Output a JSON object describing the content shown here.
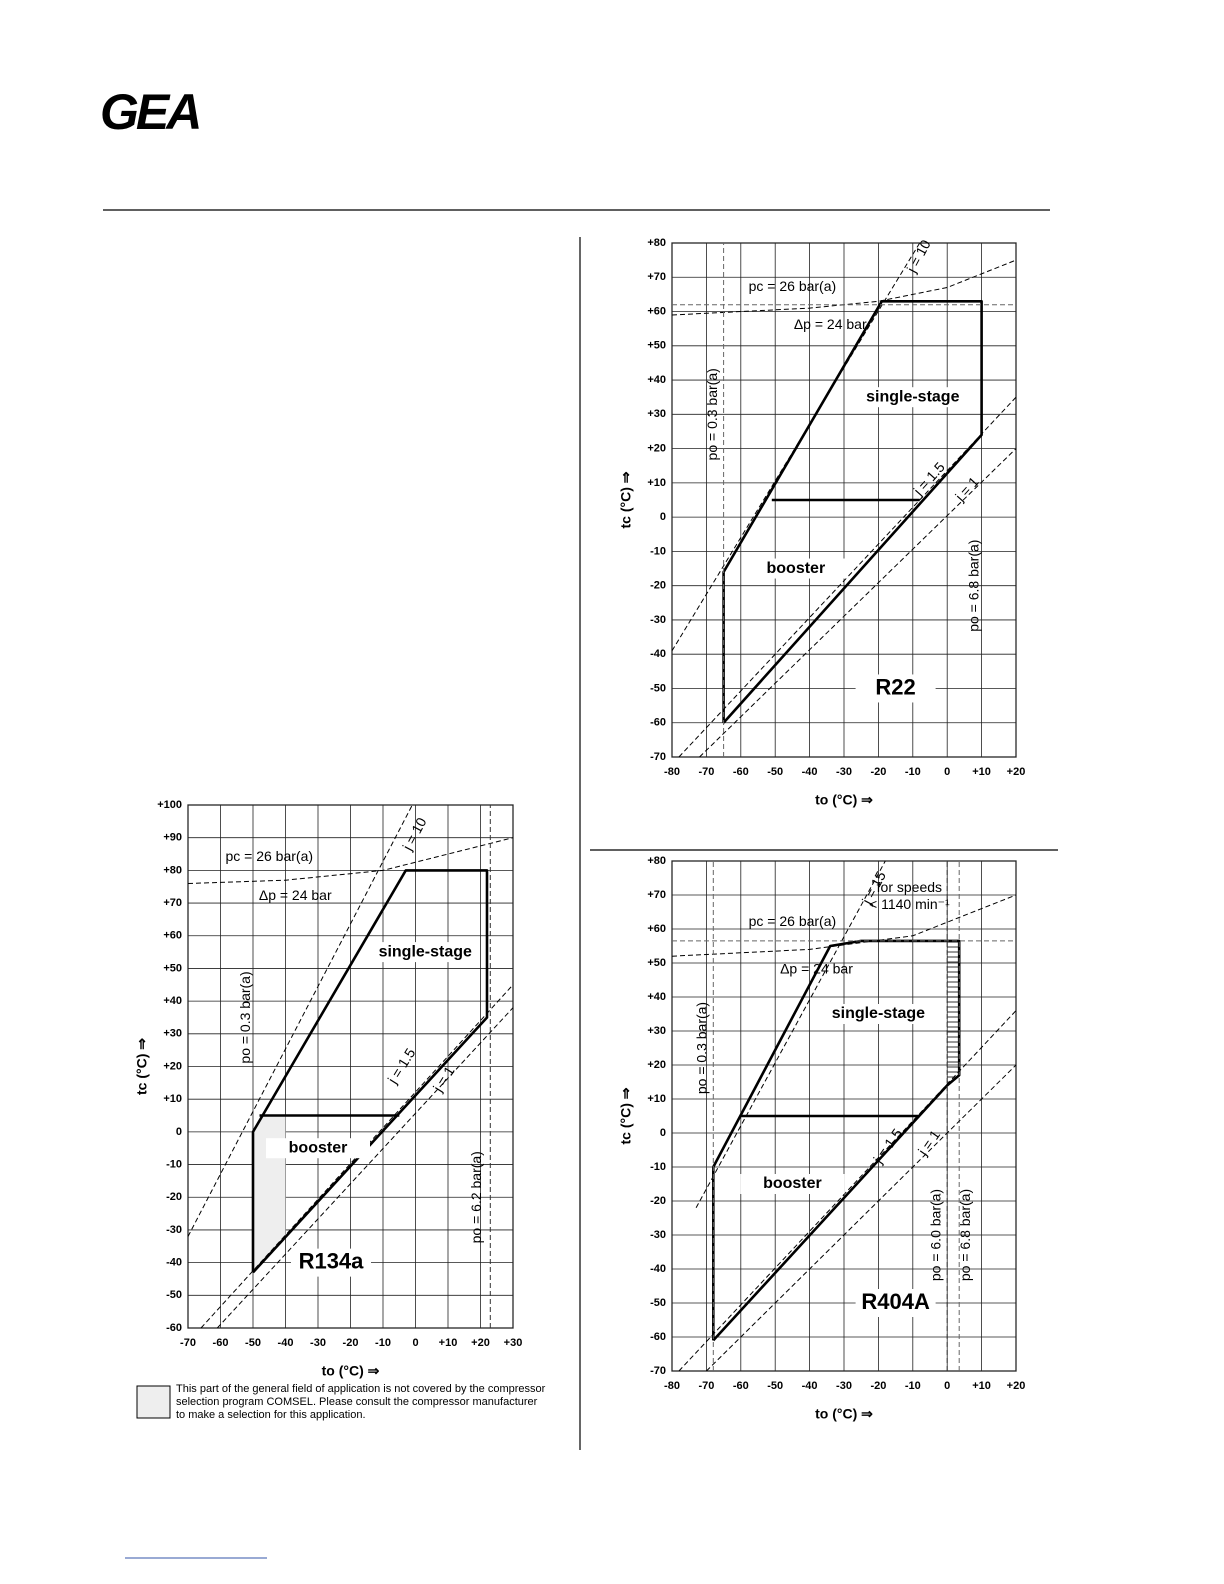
{
  "header": {
    "logo": "GEA"
  },
  "note": "This part of the general field of application is not covered by the compressor selection program COMSEL. Please consult the compressor manufacturer to make a selection for this application.",
  "chart_data": [
    {
      "type": "line",
      "title": "R22",
      "xlabel": "to (°C) ⇒",
      "ylabel": "tc (°C) ⇒",
      "xlim": [
        -80,
        20
      ],
      "ylim": [
        -70,
        80
      ],
      "grid": true,
      "xticks": [
        -80,
        -70,
        -60,
        -50,
        -40,
        -30,
        -20,
        -10,
        0,
        {
          "value": 10,
          "label": "+10"
        },
        {
          "value": 20,
          "label": "+20"
        }
      ],
      "yticks": [
        -70,
        -60,
        -50,
        -40,
        -30,
        -20,
        -10,
        0,
        {
          "value": 10,
          "label": "+10"
        },
        {
          "value": 20,
          "label": "+20"
        },
        {
          "value": 30,
          "label": "+30"
        },
        {
          "value": 40,
          "label": "+40"
        },
        {
          "value": 50,
          "label": "+50"
        },
        {
          "value": 60,
          "label": "+60"
        },
        {
          "value": 70,
          "label": "+70"
        },
        {
          "value": 80,
          "label": "+80"
        }
      ],
      "annotations": [
        "single-stage",
        "booster",
        "pc = 26 bar(a)",
        "Δp = 24 bar",
        "po = 0.3 bar(a)",
        "po = 6.8 bar(a)",
        "j = 10",
        "j = 1.5",
        "j = 1"
      ],
      "series": [
        {
          "color": "#000000",
          "style": "solid",
          "x": [
            -65,
            -65,
            -19,
            10,
            10,
            -65
          ],
          "values": [
            -60,
            -16,
            63,
            63,
            24,
            -60
          ]
        },
        {
          "color": "#000000",
          "style": "solid",
          "x": [
            -51,
            -8
          ],
          "values": [
            5,
            5
          ]
        },
        {
          "color": "#000000",
          "style": "dashed",
          "x": [
            -80,
            -8
          ],
          "values": [
            -39,
            80
          ]
        },
        {
          "color": "#000000",
          "style": "dashed",
          "x": [
            -80,
            -40,
            -20,
            0,
            20
          ],
          "values": [
            59,
            61,
            63,
            67,
            75
          ]
        },
        {
          "color": "#666666",
          "style": "dashed",
          "x": [
            -80,
            20
          ],
          "values": [
            62,
            62
          ]
        },
        {
          "color": "#666666",
          "style": "dashed",
          "x": [
            -65,
            -65
          ],
          "values": [
            -70,
            80
          ]
        },
        {
          "color": "#000000",
          "style": "dashed",
          "x": [
            -78,
            20
          ],
          "values": [
            -70,
            35
          ]
        },
        {
          "color": "#000000",
          "style": "dashed",
          "x": [
            -72,
            20
          ],
          "values": [
            -70,
            20
          ]
        }
      ]
    },
    {
      "type": "line",
      "title": "R404A",
      "xlabel": "to (°C) ⇒",
      "ylabel": "tc (°C) ⇒",
      "xlim": [
        -80,
        20
      ],
      "ylim": [
        -70,
        80
      ],
      "grid": true,
      "xticks": [
        -80,
        -70,
        -60,
        -50,
        -40,
        -30,
        -20,
        -10,
        0,
        {
          "value": 10,
          "label": "+10"
        },
        {
          "value": 20,
          "label": "+20"
        }
      ],
      "yticks": [
        -70,
        -60,
        -50,
        -40,
        -30,
        -20,
        -10,
        0,
        {
          "value": 10,
          "label": "+10"
        },
        {
          "value": 20,
          "label": "+20"
        },
        {
          "value": 30,
          "label": "+30"
        },
        {
          "value": 40,
          "label": "+40"
        },
        {
          "value": 50,
          "label": "+50"
        },
        {
          "value": 60,
          "label": "+60"
        },
        {
          "value": 70,
          "label": "+70"
        },
        {
          "value": 80,
          "label": "+80"
        }
      ],
      "annotations": [
        "single-stage",
        "booster",
        "pc = 26 bar(a)",
        "Δp = 24 bar",
        "po = 0.3 bar(a)",
        "po = 6.0 bar(a)",
        "po = 6.8 bar(a)",
        "j = 15",
        "j = 1.5",
        "j = 1",
        "for speeds",
        "< 1140 min⁻¹"
      ],
      "series": [
        {
          "color": "#000000",
          "style": "hatch",
          "x": [
            0,
            3.5,
            3.5,
            0
          ],
          "values": [
            14,
            17,
            56.5,
            56.5
          ]
        },
        {
          "color": "#000000",
          "style": "solid",
          "x": [
            -68,
            -68,
            -34,
            -25,
            3.5,
            3.5,
            0,
            -68
          ],
          "values": [
            -61,
            -10,
            55,
            56.5,
            56.5,
            17,
            14,
            -61
          ]
        },
        {
          "color": "#000000",
          "style": "solid",
          "x": [
            -60,
            -8
          ],
          "values": [
            5,
            5
          ]
        },
        {
          "color": "#000000",
          "style": "dashed",
          "x": [
            -73,
            -18
          ],
          "values": [
            -22,
            80
          ]
        },
        {
          "color": "#000000",
          "style": "dashed",
          "x": [
            -80,
            -40,
            -10,
            20
          ],
          "values": [
            52,
            54,
            58,
            70
          ]
        },
        {
          "color": "#666666",
          "style": "dashed",
          "x": [
            -80,
            20
          ],
          "values": [
            56.5,
            56.5
          ]
        },
        {
          "color": "#666666",
          "style": "dashed",
          "x": [
            -68,
            -68
          ],
          "values": [
            -70,
            80
          ]
        },
        {
          "color": "#333333",
          "style": "dashed",
          "x": [
            0,
            0
          ],
          "values": [
            -70,
            80
          ]
        },
        {
          "color": "#666666",
          "style": "dashed",
          "x": [
            3.5,
            3.5
          ],
          "values": [
            -70,
            80
          ]
        },
        {
          "color": "#000000",
          "style": "dashed",
          "x": [
            -78,
            20
          ],
          "values": [
            -70,
            36
          ]
        },
        {
          "color": "#000000",
          "style": "dashed",
          "x": [
            -70,
            20
          ],
          "values": [
            -70,
            20
          ]
        }
      ]
    },
    {
      "type": "line",
      "title": "R134a",
      "xlabel": "to (°C) ⇒",
      "ylabel": "tc (°C) ⇒",
      "xlim": [
        -70,
        30
      ],
      "ylim": [
        -60,
        100
      ],
      "grid": true,
      "xticks": [
        -70,
        -60,
        -50,
        -40,
        -30,
        -20,
        -10,
        0,
        {
          "value": 10,
          "label": "+10"
        },
        {
          "value": 20,
          "label": "+20"
        },
        {
          "value": 30,
          "label": "+30"
        }
      ],
      "yticks": [
        -60,
        -50,
        -40,
        -30,
        -20,
        -10,
        0,
        {
          "value": 10,
          "label": "+10"
        },
        {
          "value": 20,
          "label": "+20"
        },
        {
          "value": 30,
          "label": "+30"
        },
        {
          "value": 40,
          "label": "+40"
        },
        {
          "value": 50,
          "label": "+50"
        },
        {
          "value": 60,
          "label": "+60"
        },
        {
          "value": 70,
          "label": "+70"
        },
        {
          "value": 80,
          "label": "+80"
        },
        {
          "value": 90,
          "label": "+90"
        },
        {
          "value": 100,
          "label": "+100"
        }
      ],
      "annotations": [
        "single-stage",
        "booster",
        "pc = 26 bar(a)",
        "Δp = 24 bar",
        "po = 0.3 bar(a)",
        "po = 6.2 bar(a)",
        "j = 10",
        "j = 1.5",
        "j = 1"
      ],
      "series": [
        {
          "color": "#eeeeee",
          "style": "fill",
          "x": [
            -50,
            -47,
            -40,
            -40,
            -50
          ],
          "values": [
            0,
            5,
            5,
            -32,
            -43
          ]
        },
        {
          "color": "#000000",
          "style": "solid",
          "x": [
            -50,
            -50,
            -3,
            22,
            22,
            -50
          ],
          "values": [
            -43,
            0,
            80,
            80,
            35,
            -43
          ]
        },
        {
          "color": "#000000",
          "style": "solid",
          "x": [
            -48,
            -5
          ],
          "values": [
            5,
            5
          ]
        },
        {
          "color": "#000000",
          "style": "dashed",
          "x": [
            -70,
            -1
          ],
          "values": [
            -32,
            100
          ]
        },
        {
          "color": "#000000",
          "style": "dashed",
          "x": [
            -70,
            -40,
            -10,
            30
          ],
          "values": [
            76,
            77,
            80,
            90
          ]
        },
        {
          "color": "#333333",
          "style": "dashed",
          "x": [
            23,
            23
          ],
          "values": [
            -60,
            100
          ]
        },
        {
          "color": "#000000",
          "style": "dashed",
          "x": [
            -66,
            30
          ],
          "values": [
            -60,
            45
          ]
        },
        {
          "color": "#000000",
          "style": "dashed",
          "x": [
            -61,
            30
          ],
          "values": [
            -60,
            38
          ]
        }
      ]
    }
  ]
}
